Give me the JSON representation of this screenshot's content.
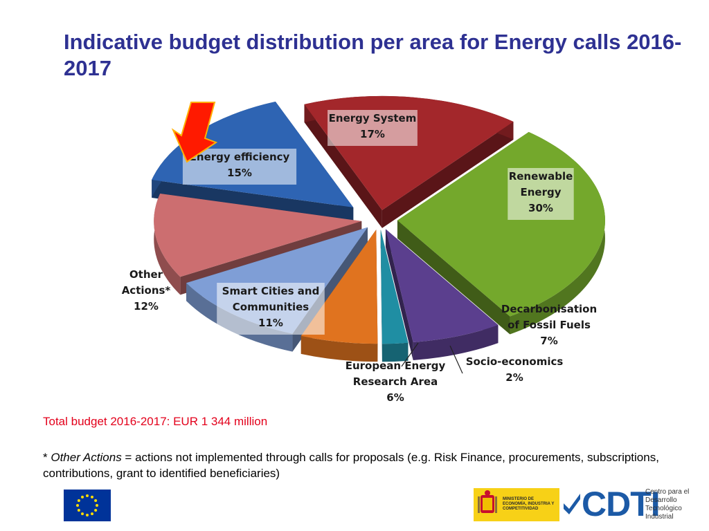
{
  "slide": {
    "title": "Indicative budget distribution per area for Energy calls 2016-2017",
    "budget_note": "Total budget 2016-2017: EUR 1 344 million",
    "footnote_prefix": "* ",
    "footnote_term": "Other Actions",
    "footnote_rest": " = actions not implemented through calls for proposals (e.g. Risk Finance, procurements, subscriptions, contributions, grant to identified beneficiaries)"
  },
  "logos": {
    "ministry_text": "MINISTERIO DE ECONOMÍA, INDUSTRIA Y COMPETITIVIDAD",
    "cdti_word": "CDTI",
    "cdti_sub": "Centro para el Desarrollo Tecnológico Industrial"
  },
  "chart_data": {
    "type": "pie",
    "title": "Indicative budget distribution per area for Energy calls 2016-2017",
    "unit": "%",
    "highlight": "Energy efficiency",
    "slices": [
      {
        "name": "Energy System",
        "label_lines": [
          "Energy System",
          "17%"
        ],
        "value": 17,
        "color": "#a3272b"
      },
      {
        "name": "Renewable Energy",
        "label_lines": [
          "Renewable",
          "Energy",
          "30%"
        ],
        "value": 30,
        "color": "#74a82c"
      },
      {
        "name": "Decarbonisation of Fossil Fuels",
        "label_lines": [
          "Decarbonisation",
          "of Fossil Fuels",
          "7%"
        ],
        "value": 7,
        "color": "#5b3f8e"
      },
      {
        "name": "Socio-economics",
        "label_lines": [
          "Socio-economics",
          "2%"
        ],
        "value": 2,
        "color": "#1f8ea3"
      },
      {
        "name": "European Energy Research Area",
        "label_lines": [
          "European Energy",
          "Research Area",
          "6%"
        ],
        "value": 6,
        "color": "#e0731f"
      },
      {
        "name": "Smart Cities and Communities",
        "label_lines": [
          "Smart Cities and",
          "Communities",
          "11%"
        ],
        "value": 11,
        "color": "#7f9ed6"
      },
      {
        "name": "Other Actions*",
        "label_lines": [
          "Other",
          "Actions*",
          "12%"
        ],
        "value": 12,
        "color": "#cc6e70"
      },
      {
        "name": "Energy efficiency",
        "label_lines": [
          "Energy efficiency",
          "15%"
        ],
        "value": 15,
        "color": "#2e64b3"
      }
    ]
  }
}
